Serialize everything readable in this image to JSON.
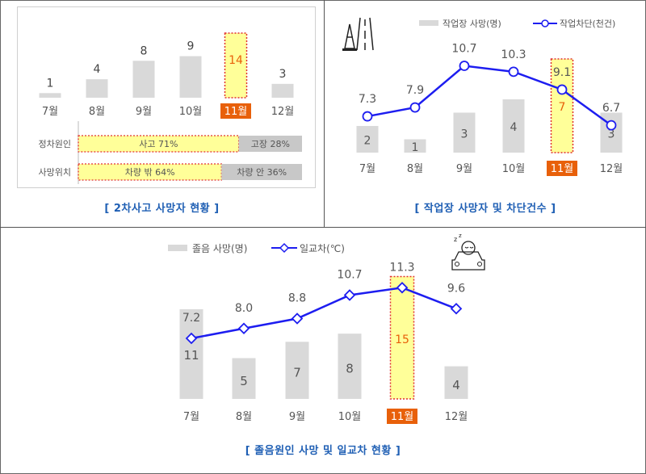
{
  "months": [
    "7월",
    "8월",
    "9월",
    "10월",
    "11월",
    "12월"
  ],
  "highlight_index": 4,
  "colors": {
    "bar": "#d9d9d9",
    "line": "#1d1df0",
    "highlight_fill": "#ffff99",
    "highlight_border": "#e03030",
    "highlight_tick_bg": "#e8600a",
    "caption": "#1f5fb4",
    "highlight_text": "#e8600a"
  },
  "panel1": {
    "caption": "[ 2차사고 사망자 현황 ]",
    "chart_data": {
      "type": "bar",
      "categories": [
        "7월",
        "8월",
        "9월",
        "10월",
        "11월",
        "12월"
      ],
      "values": [
        1,
        4,
        8,
        9,
        14,
        3
      ],
      "ylim": [
        0,
        14
      ]
    },
    "breakdown": [
      {
        "label": "정차원인",
        "primary": {
          "label": "사고 71%",
          "value": 71
        },
        "secondary": {
          "label": "고장 28%",
          "value": 28
        }
      },
      {
        "label": "사망위치",
        "primary": {
          "label": "차량 밖 64%",
          "value": 64
        },
        "secondary": {
          "label": "차량 안 36%",
          "value": 36
        }
      }
    ]
  },
  "panel2": {
    "caption": "[ 작업장 사망자 및 차단건수 ]",
    "icon": "road-work-cone-icon",
    "chart_data": {
      "type": "bar+line",
      "categories": [
        "7월",
        "8월",
        "9월",
        "10월",
        "11월",
        "12월"
      ],
      "series": [
        {
          "name": "작업장 사망(명)",
          "type": "bar",
          "values": [
            2,
            1,
            3,
            4,
            7,
            3
          ]
        },
        {
          "name": "작업차단(천건)",
          "type": "line",
          "values": [
            7.3,
            7.9,
            10.7,
            10.3,
            9.1,
            6.7
          ]
        }
      ]
    }
  },
  "panel3": {
    "caption": "[ 졸음원인 사망 및 일교차 현황 ]",
    "icon": "drowsy-driver-icon",
    "chart_data": {
      "type": "bar+line",
      "categories": [
        "7월",
        "8월",
        "9월",
        "10월",
        "11월",
        "12월"
      ],
      "series": [
        {
          "name": "졸음 사망(명)",
          "type": "bar",
          "values": [
            11,
            5,
            7,
            8,
            15,
            4
          ]
        },
        {
          "name": "일교차(℃)",
          "type": "line",
          "values": [
            7.2,
            8.0,
            8.8,
            10.7,
            11.3,
            9.6
          ]
        }
      ]
    }
  }
}
